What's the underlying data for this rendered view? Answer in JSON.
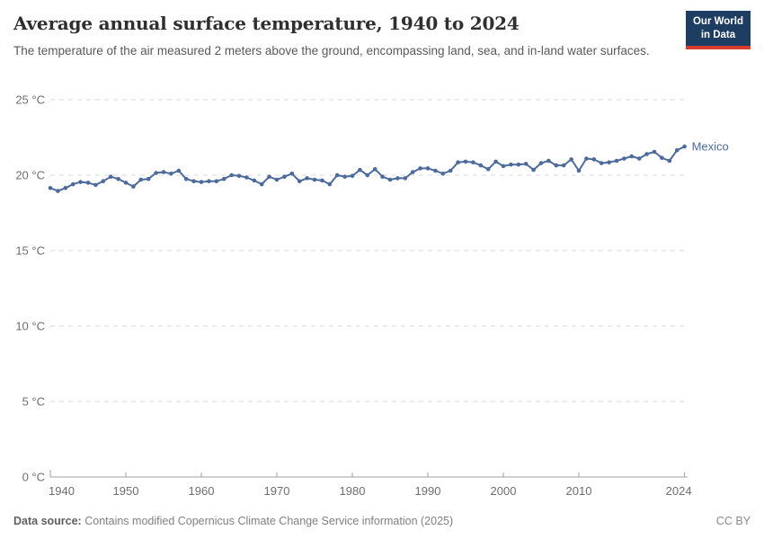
{
  "header": {
    "title": "Average annual surface temperature, 1940 to 2024",
    "subtitle": "The temperature of the air measured 2 meters above the ground, encompassing land, sea, and in-land water surfaces.",
    "logo": {
      "line1": "Our World",
      "line2": "in Data"
    }
  },
  "chart_data": {
    "type": "line",
    "title": "Average annual surface temperature, 1940 to 2024",
    "entity_label": "Mexico",
    "unit": "°C",
    "grid": "horizontal dashed",
    "legend_position": "end-of-line label",
    "ylim": [
      0,
      25
    ],
    "yticks": [
      0,
      5,
      10,
      15,
      20,
      25
    ],
    "ytick_suffix": " °C",
    "xticks": [
      1940,
      1950,
      1960,
      1970,
      1980,
      1990,
      2000,
      2010,
      2024
    ],
    "x": [
      1940,
      1941,
      1942,
      1943,
      1944,
      1945,
      1946,
      1947,
      1948,
      1949,
      1950,
      1951,
      1952,
      1953,
      1954,
      1955,
      1956,
      1957,
      1958,
      1959,
      1960,
      1961,
      1962,
      1963,
      1964,
      1965,
      1966,
      1967,
      1968,
      1969,
      1970,
      1971,
      1972,
      1973,
      1974,
      1975,
      1976,
      1977,
      1978,
      1979,
      1980,
      1981,
      1982,
      1983,
      1984,
      1985,
      1986,
      1987,
      1988,
      1989,
      1990,
      1991,
      1992,
      1993,
      1994,
      1995,
      1996,
      1997,
      1998,
      1999,
      2000,
      2001,
      2002,
      2003,
      2004,
      2005,
      2006,
      2007,
      2008,
      2009,
      2010,
      2011,
      2012,
      2013,
      2014,
      2015,
      2016,
      2017,
      2018,
      2019,
      2020,
      2021,
      2022,
      2023,
      2024
    ],
    "series": [
      {
        "name": "Mexico",
        "color": "#4C6A9C",
        "values": [
          19.15,
          18.95,
          19.15,
          19.4,
          19.55,
          19.5,
          19.35,
          19.6,
          19.9,
          19.75,
          19.5,
          19.25,
          19.7,
          19.75,
          20.15,
          20.2,
          20.1,
          20.3,
          19.75,
          19.6,
          19.55,
          19.6,
          19.6,
          19.75,
          20.0,
          19.95,
          19.85,
          19.65,
          19.4,
          19.9,
          19.7,
          19.9,
          20.1,
          19.6,
          19.8,
          19.7,
          19.65,
          19.4,
          20.0,
          19.9,
          19.95,
          20.35,
          20.0,
          20.4,
          19.9,
          19.7,
          19.8,
          19.8,
          20.2,
          20.45,
          20.45,
          20.3,
          20.1,
          20.3,
          20.85,
          20.9,
          20.85,
          20.65,
          20.4,
          20.9,
          20.6,
          20.7,
          20.7,
          20.75,
          20.35,
          20.8,
          20.95,
          20.65,
          20.65,
          21.05,
          20.3,
          21.1,
          21.05,
          20.8,
          20.85,
          20.95,
          21.1,
          21.25,
          21.1,
          21.4,
          21.55,
          21.15,
          20.95,
          21.65,
          21.9
        ]
      }
    ]
  },
  "footer": {
    "source_label": "Data source:",
    "source_text": "Contains modified Copernicus Climate Change Service information (2025)",
    "license": "CC BY"
  },
  "colors": {
    "line": "#4C6A9C",
    "grid": "#dadada",
    "axis": "#a1a1a1",
    "tick_text": "#6e6e6e",
    "logo_bg": "#1d3d63",
    "logo_accent": "#d73c2d"
  }
}
